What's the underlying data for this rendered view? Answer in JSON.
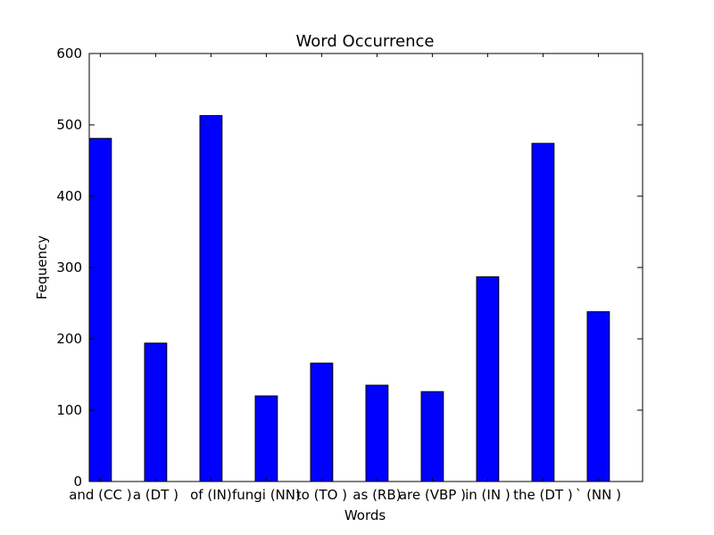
{
  "chart_data": {
    "type": "bar",
    "title": "Word Occurrence",
    "xlabel": "Words",
    "ylabel": "Fequency",
    "categories": [
      "and (CC )",
      "a (DT )",
      "of (IN)",
      "fungi (NN)",
      "to (TO )",
      "as (RB)",
      "are (VBP )",
      "in (IN )",
      "the (DT )",
      "` (NN )"
    ],
    "values": [
      481,
      194,
      513,
      120,
      166,
      135,
      126,
      287,
      474,
      238
    ],
    "ylim": [
      0,
      600
    ],
    "yticks": [
      0,
      100,
      200,
      300,
      400,
      500,
      600
    ],
    "bar_color": "#0000ff",
    "edge_color": "#000000",
    "grid": false
  }
}
